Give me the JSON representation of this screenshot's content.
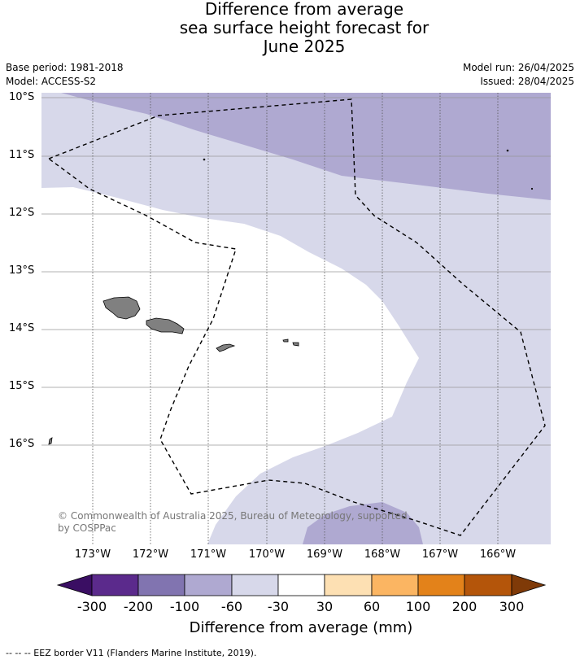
{
  "title": {
    "line1": "Difference from average",
    "line2": "sea surface height forecast for",
    "line3": "June 2025"
  },
  "meta": {
    "base_period": "Base period: 1981-2018",
    "model": "Model: ACCESS-S2",
    "model_run": "Model run: 26/04/2025",
    "issued": "Issued: 28/04/2025"
  },
  "map": {
    "latitude_labels": [
      "10°S",
      "11°S",
      "12°S",
      "13°S",
      "14°S",
      "15°S",
      "16°S"
    ],
    "longitude_labels": [
      "173°W",
      "172°W",
      "171°W",
      "170°W",
      "169°W",
      "168°W",
      "167°W",
      "166°W"
    ],
    "copyright": "© Commonwealth of Australia 2025, Bureau of Meteorology, supported by COSPPac",
    "colors": {
      "land": "#808080",
      "band_-100_-60": "#afa9d1",
      "band_-60_-30": "#d7d8ea",
      "band_-30_30": "#ffffff"
    }
  },
  "colorbar": {
    "ticks": [
      "-300",
      "-200",
      "-100",
      "-60",
      "-30",
      "30",
      "60",
      "100",
      "200",
      "300"
    ],
    "colors": [
      "#3a0e63",
      "#5b2a8c",
      "#8174b0",
      "#afa9d1",
      "#d7d8ea",
      "#ffffff",
      "#fde0b3",
      "#fbb562",
      "#e3821a",
      "#b4550a",
      "#7f3a08"
    ],
    "title": "Difference from average (mm)"
  },
  "footer": "--  --  -- EEZ border V11 (Flanders Marine Institute, 2019)."
}
